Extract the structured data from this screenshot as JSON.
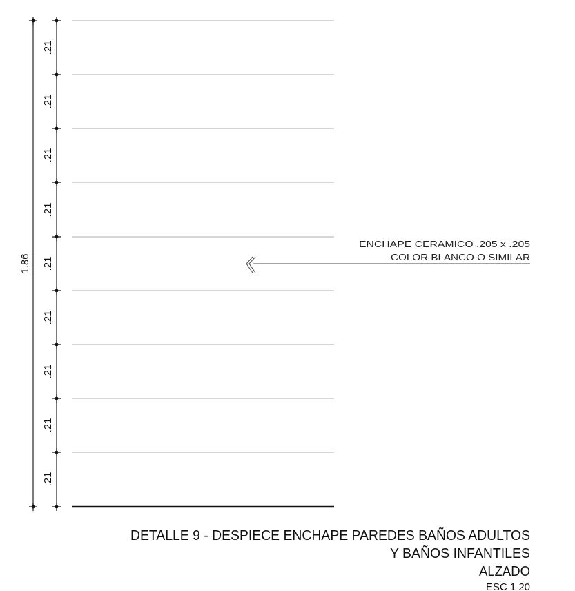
{
  "dimensions": {
    "overall_label": "1.86",
    "segment_labels": [
      ".21",
      ".21",
      ".21",
      ".21",
      ".21",
      ".21",
      ".21",
      ".21",
      ".21"
    ]
  },
  "callout": {
    "line1": "ENCHAPE CERAMICO .205 x .205",
    "line2": "COLOR BLANCO O SIMILAR"
  },
  "title": {
    "line1": "DETALLE 9 -  DESPIECE ENCHAPE PAREDES BAÑOS ADULTOS",
    "line2": "Y BAÑOS INFANTILES",
    "line3": "ALZADO",
    "line4": "ESC 1     20"
  }
}
